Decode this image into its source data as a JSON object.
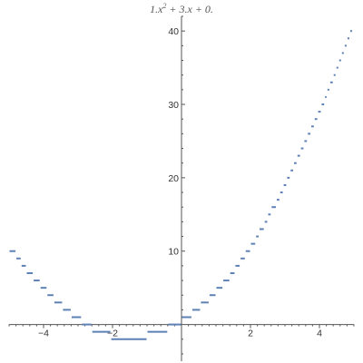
{
  "chart_data": {
    "type": "line",
    "title": {
      "lead": "1.",
      "x1": "x",
      "sup": "2",
      "mid": " + 3.",
      "x2": "x",
      "tail": " + 0."
    },
    "xlabel": "",
    "ylabel": "",
    "xlim": [
      -5.0,
      5.0
    ],
    "ylim": [
      -5.0,
      42.0
    ],
    "x_ticks": [
      -4,
      -2,
      2,
      4
    ],
    "x_tick_labels": [
      "−4",
      "−2",
      "2",
      "4"
    ],
    "y_ticks": [
      10,
      20,
      30,
      40
    ],
    "y_tick_labels": [
      "10",
      "20",
      "30",
      "40"
    ],
    "grid": false,
    "legend": "none",
    "line_color": "#5E81B5",
    "axis_color": "#555555",
    "series": [
      {
        "style": "floor-step segments",
        "points": [
          {
            "x_start": -5.0,
            "x_end": -4.8,
            "y": 10
          },
          {
            "x_start": -4.8,
            "x_end": -4.65,
            "y": 9
          },
          {
            "x_start": -4.65,
            "x_end": -4.5,
            "y": 8
          },
          {
            "x_start": -4.5,
            "x_end": -4.3,
            "y": 7
          },
          {
            "x_start": -4.3,
            "x_end": -4.1,
            "y": 6
          },
          {
            "x_start": -4.1,
            "x_end": -3.9,
            "y": 5
          },
          {
            "x_start": -3.9,
            "x_end": -3.7,
            "y": 4
          },
          {
            "x_start": -3.7,
            "x_end": -3.45,
            "y": 3
          },
          {
            "x_start": -3.45,
            "x_end": -3.2,
            "y": 2
          },
          {
            "x_start": -3.2,
            "x_end": -2.9,
            "y": 1
          },
          {
            "x_start": -2.9,
            "x_end": -2.6,
            "y": 0
          },
          {
            "x_start": -2.6,
            "x_end": -2.05,
            "y": -1
          },
          {
            "x_start": -2.05,
            "x_end": -1.0,
            "y": -2
          },
          {
            "x_start": -1.0,
            "x_end": -0.4,
            "y": -1
          },
          {
            "x_start": -0.4,
            "x_end": 0.0,
            "y": 0
          },
          {
            "x_start": 0.0,
            "x_end": 0.3,
            "y": 1
          },
          {
            "x_start": 0.3,
            "x_end": 0.55,
            "y": 2
          },
          {
            "x_start": 0.55,
            "x_end": 0.8,
            "y": 3
          },
          {
            "x_start": 0.8,
            "x_end": 1.0,
            "y": 4
          },
          {
            "x_start": 1.0,
            "x_end": 1.2,
            "y": 5
          },
          {
            "x_start": 1.2,
            "x_end": 1.4,
            "y": 6
          },
          {
            "x_start": 1.4,
            "x_end": 1.55,
            "y": 7
          },
          {
            "x_start": 1.55,
            "x_end": 1.7,
            "y": 8
          },
          {
            "x_start": 1.7,
            "x_end": 1.85,
            "y": 9
          },
          {
            "x_start": 1.85,
            "x_end": 2.0,
            "y": 10
          },
          {
            "x_start": 2.0,
            "x_end": 2.15,
            "y": 11
          },
          {
            "x_start": 2.15,
            "x_end": 2.25,
            "y": 12
          },
          {
            "x_start": 2.25,
            "x_end": 2.4,
            "y": 13
          },
          {
            "x_start": 2.4,
            "x_end": 2.5,
            "y": 14
          },
          {
            "x_start": 2.5,
            "x_end": 2.6,
            "y": 15
          },
          {
            "x_start": 2.6,
            "x_end": 2.75,
            "y": 16
          },
          {
            "x_start": 2.75,
            "x_end": 2.85,
            "y": 17
          },
          {
            "x_start": 2.85,
            "x_end": 2.95,
            "y": 18
          },
          {
            "x_start": 2.95,
            "x_end": 3.05,
            "y": 19
          },
          {
            "x_start": 3.05,
            "x_end": 3.15,
            "y": 20
          },
          {
            "x_start": 3.15,
            "x_end": 3.25,
            "y": 21
          },
          {
            "x_start": 3.25,
            "x_end": 3.35,
            "y": 22
          },
          {
            "x_start": 3.35,
            "x_end": 3.45,
            "y": 23
          },
          {
            "x_start": 3.45,
            "x_end": 3.55,
            "y": 24
          },
          {
            "x_start": 3.55,
            "x_end": 3.65,
            "y": 25
          },
          {
            "x_start": 3.65,
            "x_end": 3.75,
            "y": 26
          },
          {
            "x_start": 3.75,
            "x_end": 3.85,
            "y": 27
          },
          {
            "x_start": 3.85,
            "x_end": 3.95,
            "y": 28
          },
          {
            "x_start": 3.95,
            "x_end": 4.05,
            "y": 29
          },
          {
            "x_start": 4.05,
            "x_end": 4.15,
            "y": 30
          },
          {
            "x_start": 4.15,
            "x_end": 4.22,
            "y": 31
          },
          {
            "x_start": 4.22,
            "x_end": 4.3,
            "y": 32
          },
          {
            "x_start": 4.3,
            "x_end": 4.4,
            "y": 33
          },
          {
            "x_start": 4.4,
            "x_end": 4.48,
            "y": 34
          },
          {
            "x_start": 4.48,
            "x_end": 4.56,
            "y": 35
          },
          {
            "x_start": 4.56,
            "x_end": 4.64,
            "y": 36
          },
          {
            "x_start": 4.64,
            "x_end": 4.72,
            "y": 37
          },
          {
            "x_start": 4.72,
            "x_end": 4.8,
            "y": 38
          },
          {
            "x_start": 4.8,
            "x_end": 4.88,
            "y": 39
          },
          {
            "x_start": 4.88,
            "x_end": 4.96,
            "y": 40
          }
        ]
      }
    ]
  }
}
